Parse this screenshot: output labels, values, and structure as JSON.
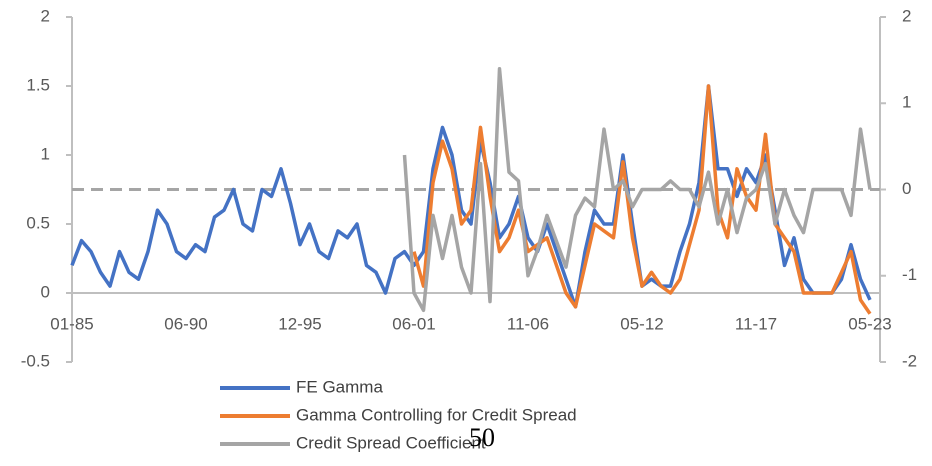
{
  "chart_data": {
    "type": "line",
    "categories": [
      "01-85",
      null,
      null,
      null,
      null,
      null,
      null,
      null,
      null,
      null,
      null,
      null,
      "06-90",
      null,
      null,
      null,
      null,
      null,
      null,
      null,
      null,
      null,
      null,
      null,
      "12-95",
      null,
      null,
      null,
      null,
      null,
      null,
      null,
      null,
      null,
      null,
      null,
      "06-01",
      null,
      null,
      null,
      null,
      null,
      null,
      null,
      null,
      null,
      null,
      null,
      "11-06",
      null,
      null,
      null,
      null,
      null,
      null,
      null,
      null,
      null,
      null,
      null,
      "05-12",
      null,
      null,
      null,
      null,
      null,
      null,
      null,
      null,
      null,
      null,
      null,
      "11-17",
      null,
      null,
      null,
      null,
      null,
      null,
      null,
      null,
      null,
      null,
      null,
      "05-23"
    ],
    "series": [
      {
        "name": "FE Gamma",
        "color": "#4472c4",
        "axis": "y",
        "values": [
          0.2,
          0.38,
          0.3,
          0.15,
          0.05,
          0.3,
          0.15,
          0.1,
          0.3,
          0.6,
          0.5,
          0.3,
          0.25,
          0.35,
          0.3,
          0.55,
          0.6,
          0.75,
          0.5,
          0.45,
          0.75,
          0.7,
          0.9,
          0.65,
          0.35,
          0.5,
          0.3,
          0.25,
          0.45,
          0.4,
          0.5,
          0.2,
          0.15,
          0,
          0.25,
          0.3,
          0.2,
          0.3,
          0.9,
          1.2,
          1.0,
          0.6,
          0.5,
          1.1,
          0.8,
          0.4,
          0.5,
          0.7,
          0.4,
          0.3,
          0.5,
          0.3,
          0.1,
          -0.1,
          0.3,
          0.6,
          0.5,
          0.5,
          1.0,
          0.5,
          0.05,
          0.1,
          0.05,
          0.05,
          0.3,
          0.5,
          0.8,
          1.5,
          0.9,
          0.9,
          0.7,
          0.9,
          0.8,
          1.0,
          0.6,
          0.2,
          0.4,
          0.1,
          0,
          0,
          0,
          0.1,
          0.35,
          0.1,
          -0.05
        ]
      },
      {
        "name": "Gamma Controlling for Credit Spread",
        "color": "#ed7d31",
        "axis": "y",
        "values": [
          null,
          null,
          null,
          null,
          null,
          null,
          null,
          null,
          null,
          null,
          null,
          null,
          null,
          null,
          null,
          null,
          null,
          null,
          null,
          null,
          null,
          null,
          null,
          null,
          null,
          null,
          null,
          null,
          null,
          null,
          null,
          null,
          null,
          null,
          null,
          null,
          0.3,
          0.05,
          0.8,
          1.1,
          0.9,
          0.5,
          0.6,
          1.2,
          0.7,
          0.3,
          0.4,
          0.6,
          0.3,
          0.35,
          0.4,
          0.2,
          0.0,
          -0.1,
          0.2,
          0.5,
          0.45,
          0.4,
          0.95,
          0.4,
          0.05,
          0.15,
          0.05,
          0.0,
          0.1,
          0.35,
          0.6,
          1.5,
          0.6,
          0.4,
          0.9,
          0.7,
          0.6,
          1.15,
          0.5,
          0.4,
          0.3,
          0.0,
          0.0,
          0.0,
          0.0,
          0.15,
          0.3,
          -0.05,
          -0.15
        ]
      },
      {
        "name": "Credit Spread Coefficient",
        "color": "#a5a5a5",
        "axis": "y2",
        "values": [
          null,
          null,
          null,
          null,
          null,
          null,
          null,
          null,
          null,
          null,
          null,
          null,
          null,
          null,
          null,
          null,
          null,
          null,
          null,
          null,
          null,
          null,
          null,
          null,
          null,
          null,
          null,
          null,
          null,
          null,
          null,
          null,
          null,
          null,
          null,
          0.4,
          -1.2,
          -1.4,
          -0.3,
          -0.8,
          -0.3,
          -0.9,
          -1.2,
          0.3,
          -1.3,
          1.4,
          0.2,
          0.1,
          -1.0,
          -0.7,
          -0.3,
          -0.6,
          -0.9,
          -0.3,
          -0.1,
          -0.2,
          0.7,
          0.0,
          0.1,
          -0.2,
          0.0,
          0.0,
          0.0,
          0.1,
          0.0,
          0.0,
          -0.2,
          0.2,
          -0.4,
          0.0,
          -0.5,
          -0.1,
          0.0,
          0.3,
          -0.4,
          0.0,
          -0.3,
          -0.5,
          0.0,
          0.0,
          0.0,
          0.0,
          -0.3,
          0.7,
          0.0
        ]
      }
    ],
    "ylim": [
      -0.5,
      2
    ],
    "yticks": [
      2,
      1.5,
      1,
      0.5,
      0,
      -0.5
    ],
    "y2lim": [
      -2,
      2
    ],
    "y2ticks": [
      2,
      1,
      0,
      -1,
      -2
    ],
    "y2_reference_line": 0,
    "legend": "bottom",
    "footer": "50"
  }
}
